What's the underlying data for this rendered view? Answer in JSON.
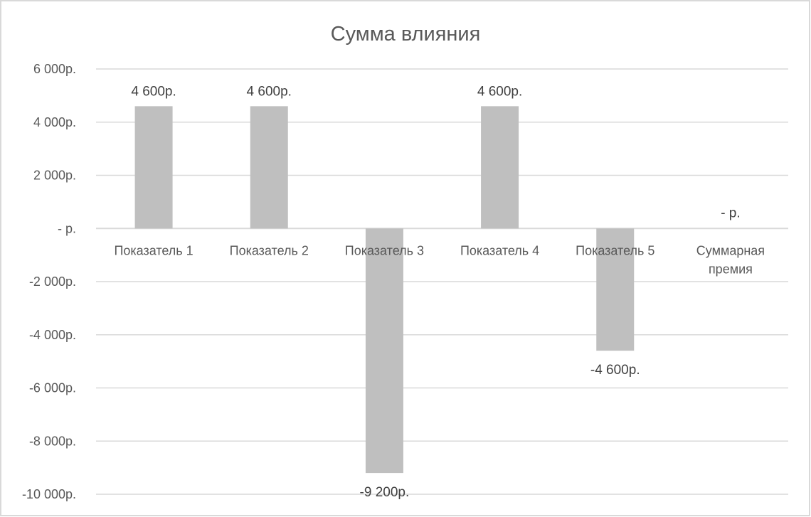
{
  "chart_data": {
    "type": "bar",
    "title": "Сумма влияния",
    "xlabel": "",
    "ylabel": "",
    "categories": [
      "Показатель 1",
      "Показатель 2",
      "Показатель 3",
      "Показатель 4",
      "Показатель 5",
      "Суммарная премия"
    ],
    "values": [
      4600,
      4600,
      -9200,
      4600,
      -4600,
      0
    ],
    "data_labels": [
      "4 600р.",
      "4 600р.",
      "-9 200р.",
      "4 600р.",
      "-4 600р.",
      "-  р."
    ],
    "ylim": [
      -10000,
      6000
    ],
    "y_ticks": [
      6000,
      4000,
      2000,
      0,
      -2000,
      -4000,
      -6000,
      -8000,
      -10000
    ],
    "y_tick_labels": [
      "6 000р.",
      "4 000р.",
      "2 000р.",
      "-  р.",
      "-2 000р.",
      "-4 000р.",
      "-6 000р.",
      "-8 000р.",
      "-10 000р."
    ],
    "grid": true,
    "legend": "none",
    "colors": {
      "bar": "#bfbfbf",
      "grid": "#d9d9d9",
      "text": "#595959",
      "border": "#d9d9d9"
    }
  }
}
